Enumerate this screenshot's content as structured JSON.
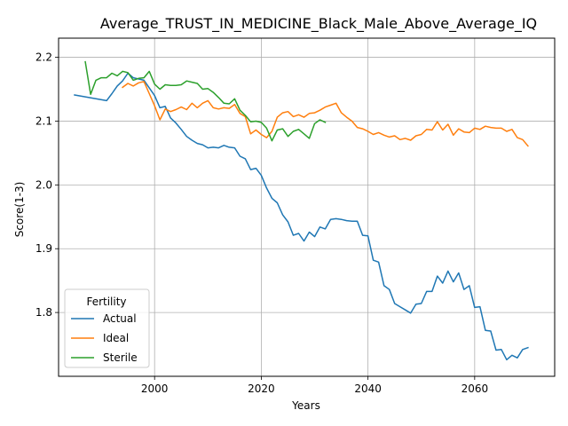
{
  "chart_data": {
    "type": "line",
    "title": "Average_TRUST_IN_MEDICINE_Black_Male_Above_Average_IQ",
    "xlabel": "Years",
    "ylabel": "Score(1-3)",
    "xlim": [
      1982,
      2075
    ],
    "ylim": [
      1.7,
      2.23
    ],
    "xticks": [
      2000,
      2020,
      2040,
      2060
    ],
    "yticks": [
      1.8,
      1.9,
      2.0,
      2.1,
      2.2
    ],
    "xtick_labels": [
      "2000",
      "2020",
      "2040",
      "2060"
    ],
    "ytick_labels": [
      "1.8",
      "1.9",
      "2.0",
      "2.1",
      "2.2"
    ],
    "grid": true,
    "legend": {
      "title": "Fertility",
      "placement": "lower-left"
    },
    "colors": {
      "Actual": "#1f77b4",
      "Ideal": "#ff7f0e",
      "Sterile": "#2ca02c"
    },
    "series": [
      {
        "name": "Actual",
        "x": [
          1985,
          1991,
          1992,
          1993,
          1994,
          1995,
          1996,
          1997,
          1998,
          1999,
          2000,
          2001,
          2002,
          2003,
          2004,
          2005,
          2006,
          2007,
          2008,
          2009,
          2010,
          2011,
          2012,
          2013,
          2014,
          2015,
          2016,
          2017,
          2018,
          2019,
          2020,
          2021,
          2022,
          2023,
          2024,
          2025,
          2026,
          2027,
          2028,
          2029,
          2030,
          2031,
          2032,
          2033,
          2034,
          2035,
          2036,
          2037,
          2038,
          2039,
          2040,
          2041,
          2042,
          2043,
          2044,
          2045,
          2046,
          2047,
          2048,
          2049,
          2050,
          2051,
          2052,
          2053,
          2054,
          2055,
          2056,
          2057,
          2058,
          2059,
          2060,
          2061,
          2062,
          2063,
          2064,
          2065,
          2066,
          2067,
          2068,
          2069,
          2070
        ],
        "y": [
          2.141,
          2.132,
          2.143,
          2.155,
          2.163,
          2.175,
          2.168,
          2.166,
          2.164,
          2.152,
          2.14,
          2.121,
          2.123,
          2.105,
          2.097,
          2.087,
          2.076,
          2.07,
          2.065,
          2.063,
          2.058,
          2.059,
          2.058,
          2.062,
          2.059,
          2.058,
          2.045,
          2.041,
          2.024,
          2.026,
          2.015,
          1.995,
          1.979,
          1.972,
          1.953,
          1.942,
          1.921,
          1.924,
          1.912,
          1.926,
          1.919,
          1.934,
          1.931,
          1.946,
          1.947,
          1.946,
          1.944,
          1.943,
          1.943,
          1.921,
          1.92,
          1.882,
          1.879,
          1.842,
          1.836,
          1.814,
          1.809,
          1.804,
          1.799,
          1.813,
          1.814,
          1.833,
          1.833,
          1.857,
          1.846,
          1.865,
          1.848,
          1.862,
          1.836,
          1.842,
          1.808,
          1.809,
          1.772,
          1.771,
          1.741,
          1.742,
          1.726,
          1.733,
          1.729,
          1.742,
          1.745
        ]
      },
      {
        "name": "Ideal",
        "x": [
          1994,
          1995,
          1996,
          1997,
          1998,
          1999,
          2000,
          2001,
          2002,
          2003,
          2004,
          2005,
          2006,
          2007,
          2008,
          2009,
          2010,
          2011,
          2012,
          2013,
          2014,
          2015,
          2016,
          2017,
          2018,
          2019,
          2020,
          2021,
          2022,
          2023,
          2024,
          2025,
          2026,
          2027,
          2028,
          2029,
          2030,
          2031,
          2032,
          2033,
          2034,
          2035,
          2036,
          2037,
          2038,
          2039,
          2040,
          2041,
          2042,
          2043,
          2044,
          2045,
          2046,
          2047,
          2048,
          2049,
          2050,
          2051,
          2052,
          2053,
          2054,
          2055,
          2056,
          2057,
          2058,
          2059,
          2060,
          2061,
          2062,
          2063,
          2064,
          2065,
          2066,
          2067,
          2068,
          2069,
          2070
        ],
        "y": [
          2.153,
          2.159,
          2.155,
          2.16,
          2.162,
          2.143,
          2.124,
          2.102,
          2.119,
          2.115,
          2.118,
          2.122,
          2.118,
          2.128,
          2.121,
          2.128,
          2.132,
          2.121,
          2.119,
          2.121,
          2.12,
          2.126,
          2.112,
          2.107,
          2.08,
          2.086,
          2.079,
          2.074,
          2.084,
          2.106,
          2.113,
          2.115,
          2.107,
          2.11,
          2.106,
          2.112,
          2.113,
          2.117,
          2.122,
          2.125,
          2.128,
          2.113,
          2.106,
          2.1,
          2.09,
          2.088,
          2.084,
          2.079,
          2.082,
          2.078,
          2.075,
          2.077,
          2.071,
          2.073,
          2.07,
          2.077,
          2.079,
          2.087,
          2.086,
          2.099,
          2.086,
          2.095,
          2.078,
          2.088,
          2.083,
          2.082,
          2.089,
          2.087,
          2.092,
          2.09,
          2.089,
          2.089,
          2.084,
          2.087,
          2.074,
          2.071,
          2.061
        ]
      },
      {
        "name": "Sterile",
        "x": [
          1987,
          1988,
          1989,
          1990,
          1991,
          1992,
          1993,
          1994,
          1995,
          1996,
          1997,
          1998,
          1999,
          2000,
          2001,
          2002,
          2003,
          2004,
          2005,
          2006,
          2007,
          2008,
          2009,
          2010,
          2011,
          2012,
          2013,
          2014,
          2015,
          2016,
          2017,
          2018,
          2019,
          2020,
          2021,
          2022,
          2023,
          2024,
          2025,
          2026,
          2027,
          2028,
          2029,
          2030,
          2031,
          2032
        ],
        "y": [
          2.193,
          2.142,
          2.164,
          2.168,
          2.168,
          2.175,
          2.171,
          2.178,
          2.176,
          2.164,
          2.167,
          2.168,
          2.178,
          2.158,
          2.15,
          2.157,
          2.156,
          2.156,
          2.157,
          2.163,
          2.161,
          2.159,
          2.15,
          2.151,
          2.145,
          2.137,
          2.128,
          2.127,
          2.135,
          2.117,
          2.109,
          2.099,
          2.1,
          2.098,
          2.089,
          2.069,
          2.086,
          2.088,
          2.076,
          2.084,
          2.087,
          2.08,
          2.073,
          2.096,
          2.102,
          2.098
        ]
      }
    ]
  }
}
